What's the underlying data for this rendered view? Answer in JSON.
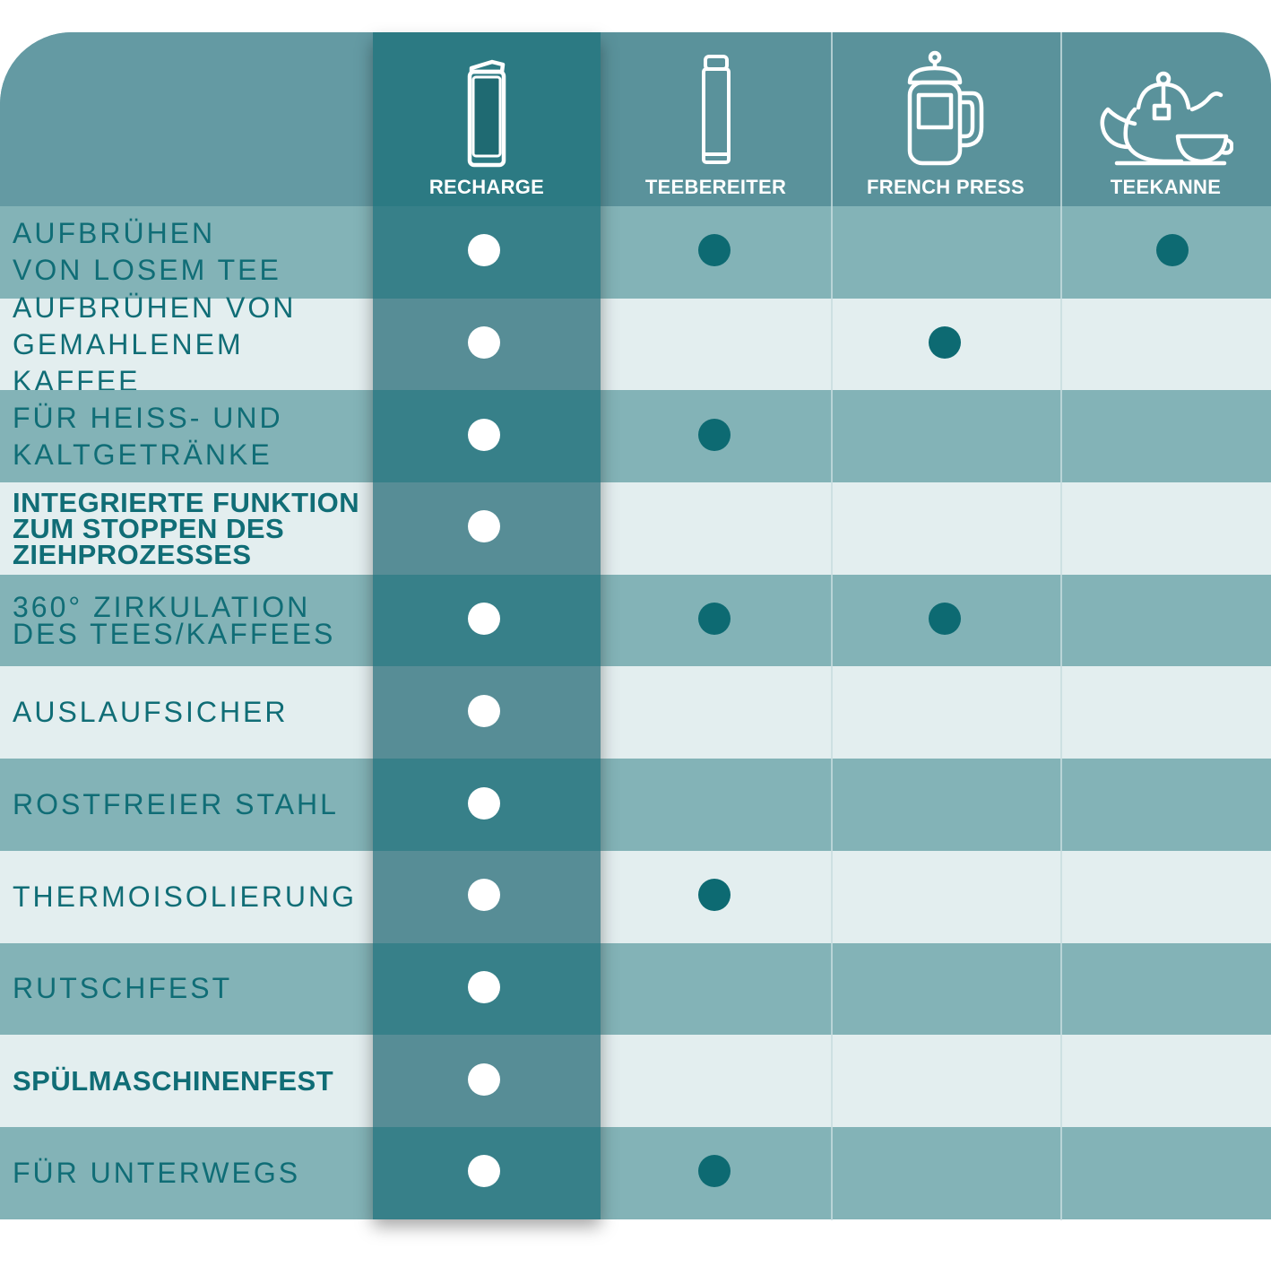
{
  "columns": [
    {
      "key": "recharge",
      "label": "RECHARGE",
      "icon": "tumbler-icon"
    },
    {
      "key": "teebereiter",
      "label": "TEEBEREITER",
      "icon": "flask-icon"
    },
    {
      "key": "french_press",
      "label": "FRENCH PRESS",
      "icon": "french-press-icon"
    },
    {
      "key": "teekanne",
      "label": "TEEKANNE",
      "icon": "teapot-icon"
    }
  ],
  "rows": [
    {
      "label": "AUFBRÜHEN\nVON LOSEM TEE",
      "style": "normal",
      "marks": [
        true,
        true,
        false,
        true
      ]
    },
    {
      "label": "AUFBRÜHEN VON\nGEMAHLENEM KAFFEE",
      "style": "normal",
      "marks": [
        true,
        false,
        true,
        false
      ]
    },
    {
      "label": "FÜR HEISS- UND\nKALTGETRÄNKE",
      "style": "normal",
      "marks": [
        true,
        true,
        false,
        false
      ]
    },
    {
      "label": "INTEGRIERTE FUNKTION\nZUM STOPPEN DES\nZIEHPROZESSES",
      "style": "tight",
      "marks": [
        true,
        false,
        false,
        false
      ]
    },
    {
      "label": "360° ZIRKULATION\nDES TEES/KAFFEES",
      "style": "mid",
      "marks": [
        true,
        true,
        true,
        false
      ]
    },
    {
      "label": "AUSLAUFSICHER",
      "style": "normal",
      "marks": [
        true,
        false,
        false,
        false
      ]
    },
    {
      "label": "ROSTFREIER STAHL",
      "style": "normal",
      "marks": [
        true,
        false,
        false,
        false
      ]
    },
    {
      "label": "THERMOISOLIERUNG",
      "style": "normal",
      "marks": [
        true,
        true,
        false,
        false
      ]
    },
    {
      "label": "RUTSCHFEST",
      "style": "normal",
      "marks": [
        true,
        false,
        false,
        false
      ]
    },
    {
      "label": "SPÜLMASCHINENFEST",
      "style": "semi",
      "marks": [
        true,
        false,
        false,
        false
      ]
    },
    {
      "label": "FÜR UNTERWEGS",
      "style": "normal",
      "marks": [
        true,
        true,
        false,
        false
      ]
    }
  ],
  "colors": {
    "header": "#5a929b",
    "row_dark": "#83b3b7",
    "row_light": "#e3eeef",
    "recharge_header": "#2c7a83",
    "recharge_dark": "#378089",
    "recharge_light": "#578d96",
    "label_text": "#106d76",
    "dot_recharge": "#ffffff",
    "dot_other": "#0d6a72"
  }
}
